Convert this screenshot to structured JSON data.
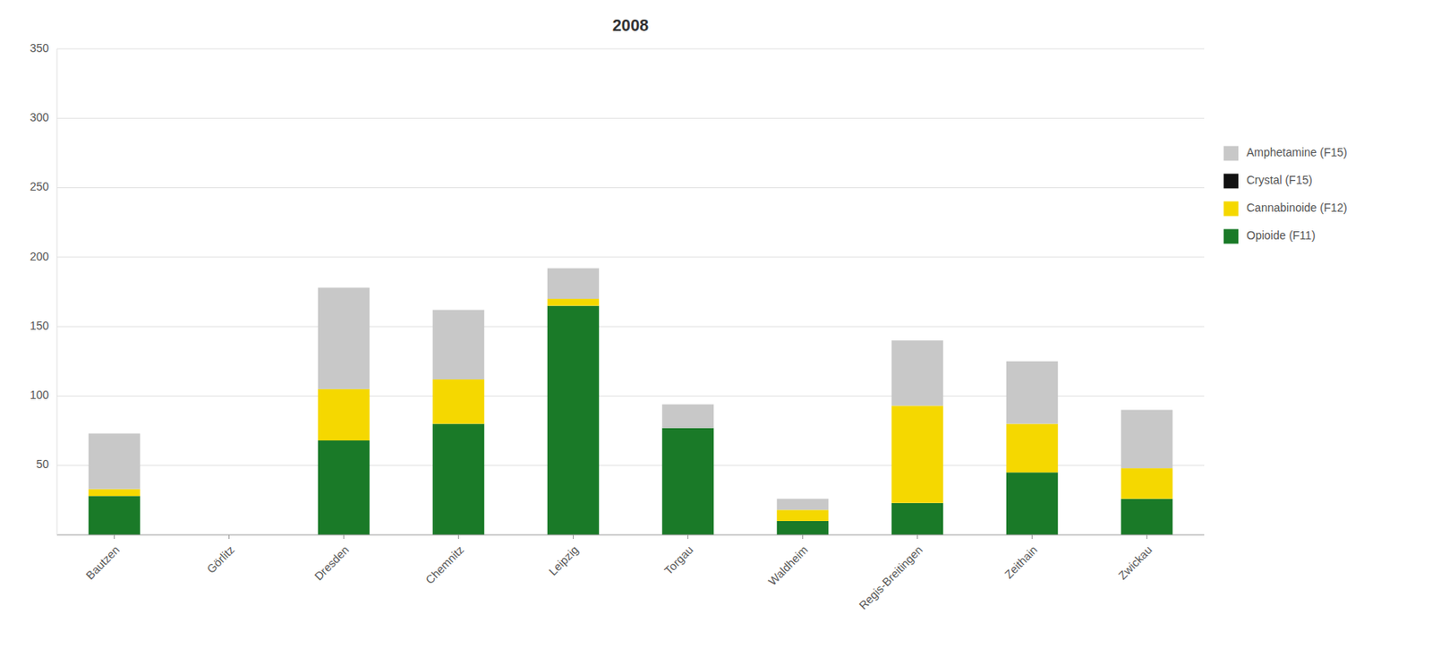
{
  "chart_data": {
    "type": "bar",
    "title": "2008",
    "stacked": true,
    "grid": true,
    "legend": "right",
    "categories": [
      "Bautzen",
      "Görlitz",
      "Dresden",
      "Chemnitz",
      "Leipzig",
      "Torgau",
      "Waldheim",
      "Regis-Breitingen",
      "Zeithain",
      "Zwickau"
    ],
    "series": [
      {
        "name": "Opioide (F11)",
        "color": "#1a7a28",
        "values": [
          28,
          0,
          68,
          80,
          165,
          77,
          10,
          23,
          45,
          26
        ]
      },
      {
        "name": "Cannabinoide (F12)",
        "color": "#f5d800",
        "values": [
          5,
          0,
          37,
          32,
          5,
          0,
          8,
          70,
          35,
          22
        ]
      },
      {
        "name": "Crystal (F15)",
        "color": "#111111",
        "values": [
          0,
          0,
          0,
          0,
          0,
          0,
          0,
          0,
          0,
          0
        ]
      },
      {
        "name": "Amphetamine (F15)",
        "color": "#c8c8c8",
        "values": [
          40,
          0,
          73,
          50,
          22,
          17,
          8,
          47,
          45,
          42
        ]
      }
    ],
    "ylim": [
      0,
      350
    ],
    "yticks": [
      50,
      100,
      150,
      200,
      250,
      300,
      350
    ]
  }
}
